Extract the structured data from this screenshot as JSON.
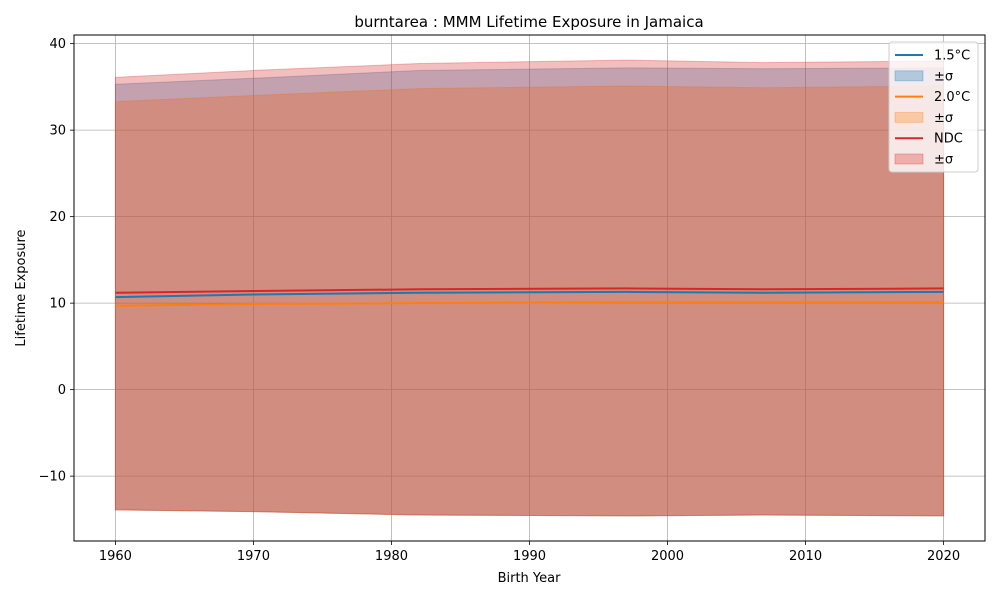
{
  "chart_data": {
    "type": "area",
    "title": "burntarea : MMM Lifetime Exposure in Jamaica",
    "xlabel": "Birth Year",
    "ylabel": "Lifetime Exposure",
    "xlim": [
      1957,
      2023
    ],
    "ylim": [
      -17.5,
      41
    ],
    "xticks": [
      1960,
      1970,
      1980,
      1990,
      2000,
      2010,
      2020
    ],
    "yticks": [
      -10,
      0,
      10,
      20,
      30,
      40
    ],
    "ytick_labels": [
      "−10",
      "0",
      "10",
      "20",
      "30",
      "40"
    ],
    "grid": true,
    "legend_position": "top-right",
    "x": [
      1960,
      1970,
      1982,
      1997,
      2007,
      2020
    ],
    "series": [
      {
        "name": "1.5°C",
        "sigma_label": "±σ",
        "color": "#1f77b4",
        "values": [
          10.7,
          11.0,
          11.2,
          11.3,
          11.2,
          11.3
        ],
        "upper": [
          35.3,
          36.0,
          36.9,
          37.2,
          37.1,
          37.2
        ],
        "lower": [
          -13.9,
          -14.1,
          -14.5,
          -14.6,
          -14.5,
          -14.6
        ]
      },
      {
        "name": "2.0°C",
        "sigma_label": "±σ",
        "color": "#ff7f0e",
        "values": [
          9.7,
          9.9,
          10.0,
          10.1,
          10.1,
          10.1
        ],
        "upper": [
          33.3,
          34.0,
          34.8,
          35.1,
          34.9,
          35.1
        ],
        "lower": [
          -13.9,
          -14.1,
          -14.5,
          -14.6,
          -14.5,
          -14.6
        ]
      },
      {
        "name": "NDC",
        "sigma_label": "±σ",
        "color": "#d62728",
        "values": [
          11.2,
          11.4,
          11.6,
          11.7,
          11.6,
          11.7
        ],
        "upper": [
          36.1,
          36.9,
          37.7,
          38.1,
          37.8,
          38.0
        ],
        "lower": [
          -13.9,
          -14.1,
          -14.5,
          -14.6,
          -14.5,
          -14.6
        ]
      }
    ]
  }
}
